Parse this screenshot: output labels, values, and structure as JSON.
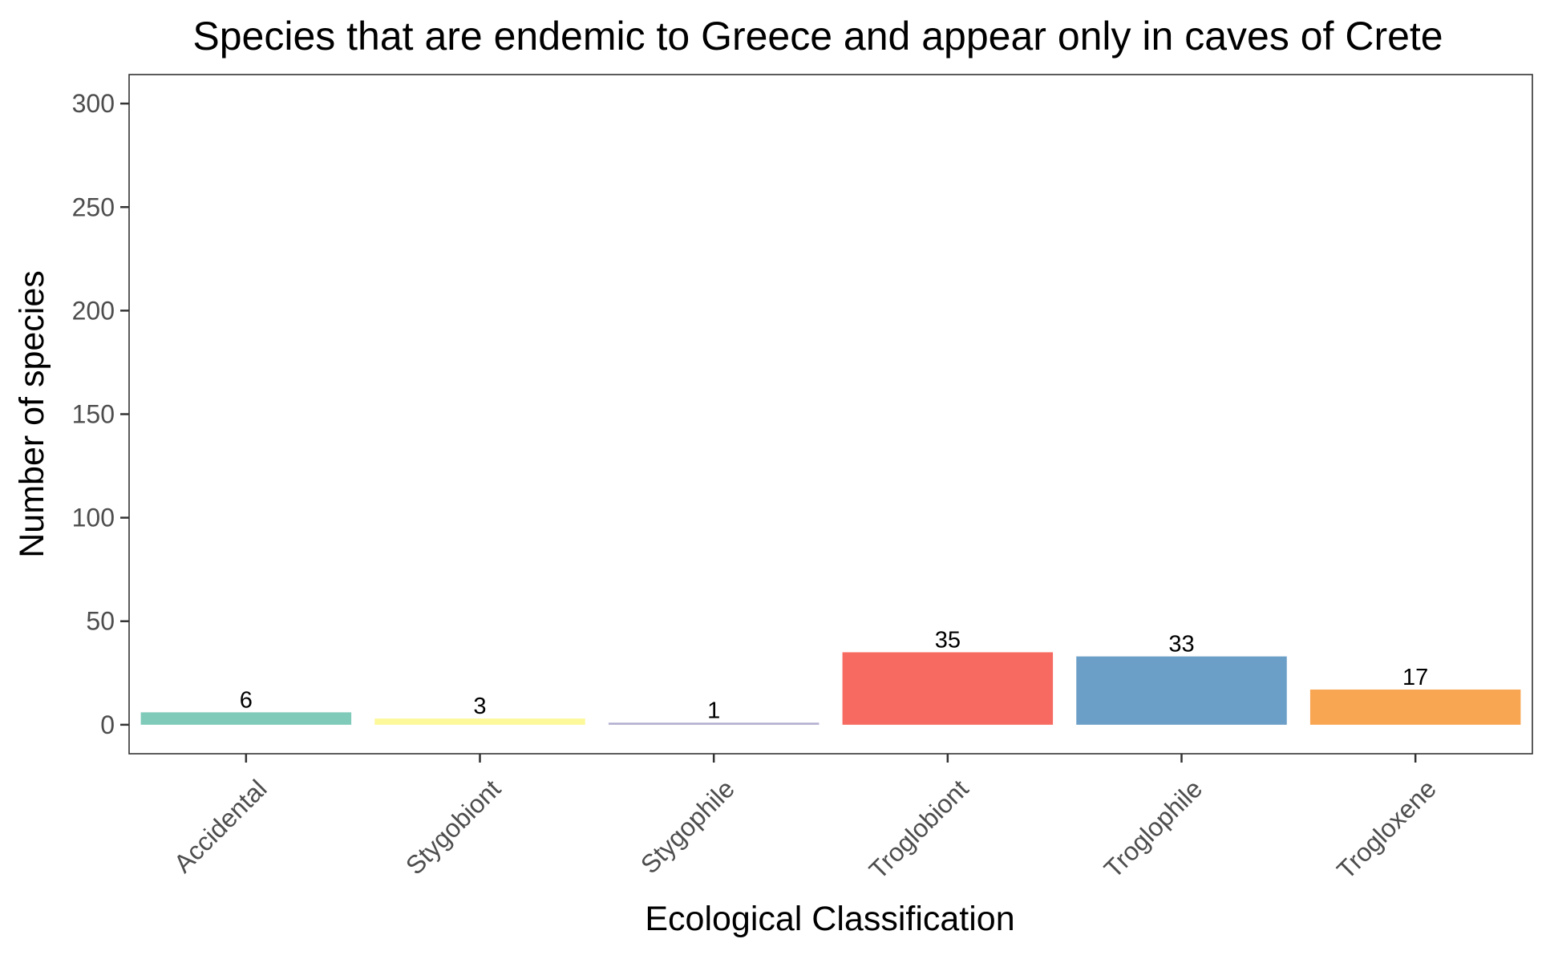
{
  "chart_data": {
    "type": "bar",
    "title": "Species that are endemic to Greece and appear only in caves of Crete",
    "xlabel": "Ecological Classification",
    "ylabel": "Number of species",
    "categories": [
      "Accidental",
      "Stygobiont",
      "Stygophile",
      "Troglobiont",
      "Troglophile",
      "Trogloxene"
    ],
    "values": [
      6,
      3,
      1,
      35,
      33,
      17
    ],
    "data_labels": [
      "6",
      "3",
      "1",
      "35",
      "33",
      "17"
    ],
    "colors": [
      "#7fcab9",
      "#fdf99b",
      "#b3aed1",
      "#f66a61",
      "#6c9fc8",
      "#f9a653"
    ],
    "ylim": [
      -14,
      314
    ],
    "yticks": [
      0,
      50,
      100,
      150,
      200,
      250,
      300
    ],
    "ytick_labels": [
      "0",
      "50",
      "100",
      "150",
      "200",
      "250",
      "300"
    ],
    "grid": false,
    "legend": "none",
    "panel_border": "#333333"
  }
}
